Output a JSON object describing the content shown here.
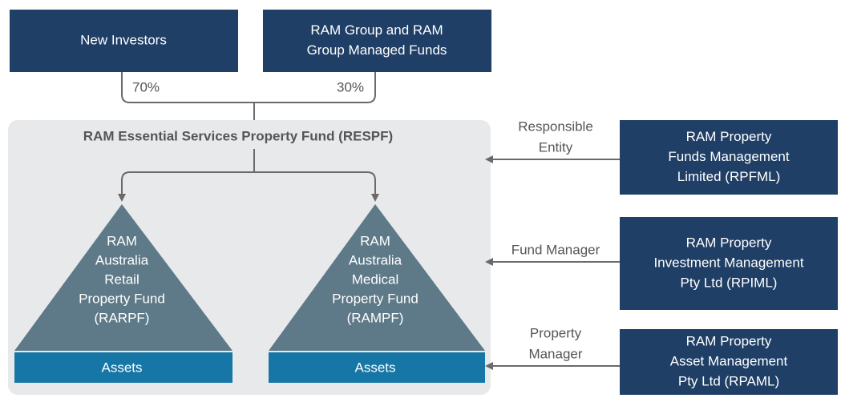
{
  "investors": [
    {
      "lines": [
        "New Investors"
      ],
      "share": "70%"
    },
    {
      "lines": [
        "RAM Group and RAM",
        "Group Managed Funds"
      ],
      "share": "30%"
    }
  ],
  "fund": {
    "title": "RAM Essential Services Property Fund (RESPF)",
    "subfunds": [
      {
        "lines": [
          "RAM",
          "Australia",
          "Retail",
          "Property Fund",
          "(RARPF)"
        ],
        "assets": "Assets"
      },
      {
        "lines": [
          "RAM",
          "Australia",
          "Medical",
          "Property Fund",
          "(RAMPF)"
        ],
        "assets": "Assets"
      }
    ]
  },
  "roles": [
    {
      "role": [
        "Responsible",
        "Entity"
      ],
      "entity": [
        "RAM Property",
        "Funds Management",
        "Limited (RPFML)"
      ]
    },
    {
      "role": [
        "Fund Manager"
      ],
      "entity": [
        "RAM Property",
        "Investment Management",
        "Pty Ltd (RPIML)"
      ]
    },
    {
      "role": [
        "Property",
        "Manager"
      ],
      "entity": [
        "RAM Property",
        "Asset Management",
        "Pty Ltd (RPAML)"
      ]
    }
  ]
}
